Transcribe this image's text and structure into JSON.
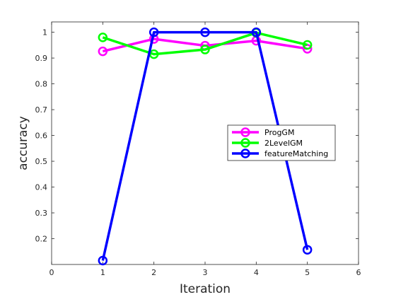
{
  "chart_data": {
    "type": "line",
    "xlabel": "Iteration",
    "ylabel": "accuracy",
    "xlim": [
      0,
      6
    ],
    "ylim": [
      0.1,
      1.04
    ],
    "xticks": [
      0,
      1,
      2,
      3,
      4,
      5,
      6
    ],
    "yticks": [
      0.2,
      0.3,
      0.4,
      0.5,
      0.6,
      0.7,
      0.8,
      0.9,
      1
    ],
    "ytick_labels": [
      "0.2",
      "0.3",
      "0.4",
      "0.5",
      "0.6",
      "0.7",
      "0.8",
      "0.9",
      "1"
    ],
    "grid": false,
    "legend_position": "right",
    "x": [
      1,
      2,
      3,
      4,
      5
    ],
    "series": [
      {
        "name": "ProgGM",
        "color": "#ff00ff",
        "values": [
          0.926,
          0.974,
          0.948,
          0.967,
          0.936
        ]
      },
      {
        "name": "2LevelGM",
        "color": "#00ff00",
        "values": [
          0.98,
          0.915,
          0.933,
          0.998,
          0.951
        ]
      },
      {
        "name": "featureMatching",
        "color": "#0000ff",
        "values": [
          0.115,
          1.0,
          1.0,
          1.0,
          0.157
        ]
      }
    ]
  }
}
